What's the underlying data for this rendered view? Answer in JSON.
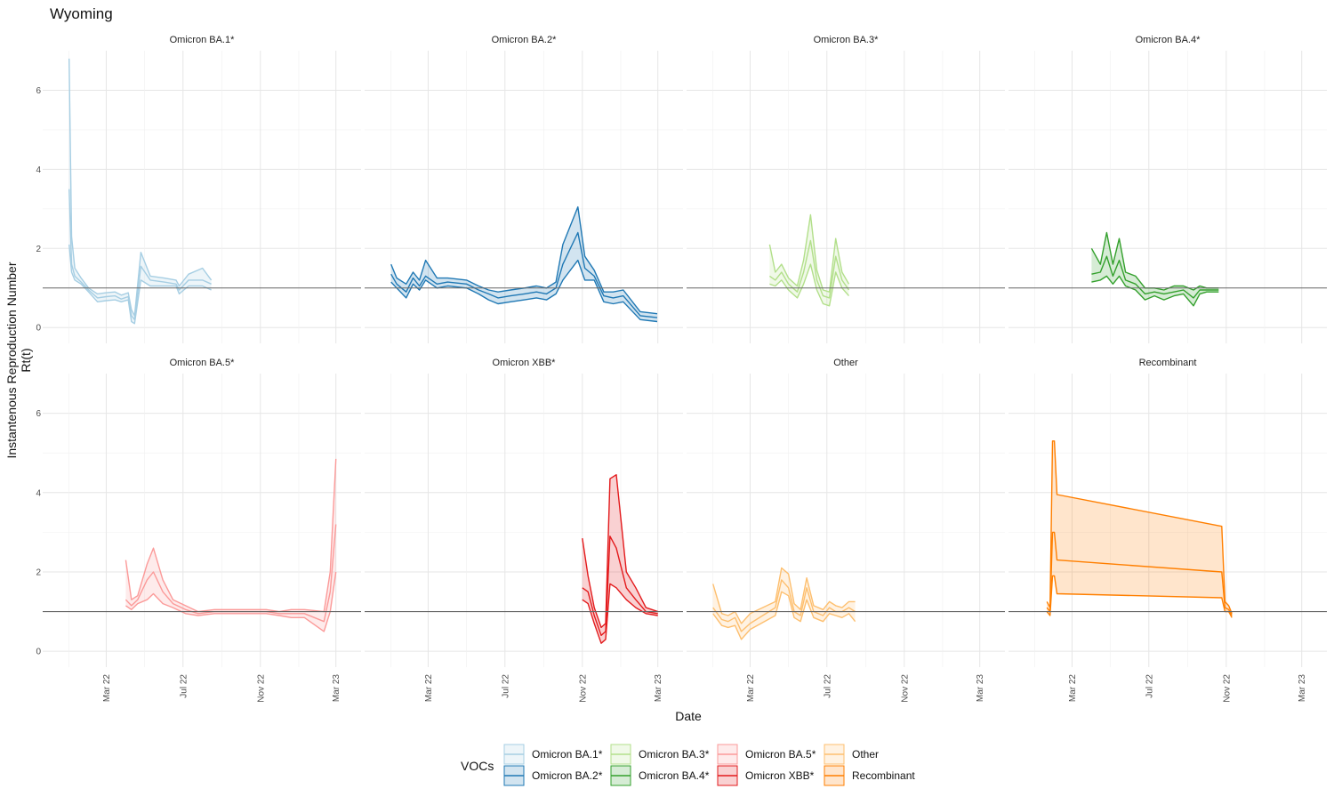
{
  "chart_data": {
    "type": "line",
    "title": "Wyoming",
    "xlabel": "Date",
    "ylabel_lines": [
      "Instantenous Reproduction Number",
      "Rt(t)"
    ],
    "ylim": [
      0,
      7
    ],
    "y_ticks": [
      0,
      2,
      4,
      6
    ],
    "reference_line": 1,
    "x_ticks": [
      "Mar 22",
      "Jul 22",
      "Nov 22",
      "Mar 23"
    ],
    "legend": {
      "title": "VOCs",
      "position": "bottom",
      "entries": [
        "Omicron BA.1*",
        "Omicron BA.2*",
        "Omicron BA.3*",
        "Omicron BA.4*",
        "Omicron BA.5*",
        "Omicron XBB*",
        "Other",
        "Recombinant"
      ]
    },
    "colors": {
      "Omicron BA.1*": "#a6cee3",
      "Omicron BA.2*": "#1f78b4",
      "Omicron BA.3*": "#b2df8a",
      "Omicron BA.4*": "#33a02c",
      "Omicron BA.5*": "#fb9a99",
      "Omicron XBB*": "#e31a1c",
      "Other": "#fdbf6f",
      "Recombinant": "#ff7f00"
    },
    "panels": [
      {
        "name": "Omicron BA.1*",
        "x": [
          "2022-01-01",
          "2022-01-05",
          "2022-01-10",
          "2022-01-20",
          "2022-02-01",
          "2022-02-15",
          "2022-03-01",
          "2022-03-15",
          "2022-03-25",
          "2022-04-05",
          "2022-04-10",
          "2022-04-15",
          "2022-04-25",
          "2022-05-10",
          "2022-06-01",
          "2022-06-20",
          "2022-06-25",
          "2022-07-10",
          "2022-08-01",
          "2022-08-15"
        ],
        "mean": [
          3.5,
          1.6,
          1.3,
          1.15,
          0.95,
          0.75,
          0.78,
          0.8,
          0.72,
          0.78,
          0.3,
          0.2,
          1.55,
          1.2,
          1.15,
          1.1,
          0.95,
          1.2,
          1.2,
          1.1
        ],
        "lower": [
          2.1,
          1.4,
          1.2,
          1.1,
          0.9,
          0.65,
          0.68,
          0.7,
          0.65,
          0.7,
          0.15,
          0.1,
          1.2,
          1.05,
          1.05,
          1.05,
          0.85,
          1.05,
          1.05,
          0.95
        ],
        "upper": [
          6.8,
          2.3,
          1.5,
          1.25,
          1.0,
          0.85,
          0.88,
          0.9,
          0.82,
          0.88,
          0.45,
          0.3,
          1.9,
          1.3,
          1.25,
          1.2,
          1.05,
          1.35,
          1.5,
          1.2
        ]
      },
      {
        "name": "Omicron BA.2*",
        "x": [
          "2022-01-01",
          "2022-01-10",
          "2022-01-25",
          "2022-02-05",
          "2022-02-15",
          "2022-02-25",
          "2022-03-15",
          "2022-04-01",
          "2022-05-01",
          "2022-05-20",
          "2022-06-05",
          "2022-06-20",
          "2022-07-10",
          "2022-08-01",
          "2022-08-20",
          "2022-09-05",
          "2022-09-20",
          "2022-10-01",
          "2022-10-25",
          "2022-11-05",
          "2022-11-20",
          "2022-12-05",
          "2022-12-20",
          "2023-01-05",
          "2023-02-01",
          "2023-02-28"
        ],
        "mean": [
          1.35,
          1.1,
          0.9,
          1.25,
          1.05,
          1.3,
          1.1,
          1.15,
          1.1,
          0.95,
          0.85,
          0.75,
          0.8,
          0.85,
          0.9,
          0.85,
          1.0,
          1.6,
          2.4,
          1.5,
          1.3,
          0.8,
          0.75,
          0.8,
          0.3,
          0.25
        ],
        "lower": [
          1.15,
          1.0,
          0.75,
          1.1,
          0.95,
          1.2,
          1.0,
          1.05,
          1.0,
          0.85,
          0.7,
          0.6,
          0.65,
          0.7,
          0.75,
          0.7,
          0.85,
          1.2,
          1.7,
          1.2,
          1.2,
          0.65,
          0.6,
          0.65,
          0.2,
          0.15
        ],
        "upper": [
          1.6,
          1.25,
          1.1,
          1.4,
          1.2,
          1.7,
          1.25,
          1.25,
          1.2,
          1.05,
          0.95,
          0.9,
          0.95,
          1.0,
          1.05,
          1.0,
          1.15,
          2.1,
          3.05,
          1.8,
          1.45,
          0.9,
          0.9,
          0.95,
          0.4,
          0.35
        ]
      },
      {
        "name": "Omicron BA.3*",
        "x": [
          "2022-04-01",
          "2022-04-10",
          "2022-04-20",
          "2022-05-01",
          "2022-05-15",
          "2022-05-25",
          "2022-06-05",
          "2022-06-15",
          "2022-06-25",
          "2022-07-05",
          "2022-07-15",
          "2022-07-25",
          "2022-08-05"
        ],
        "mean": [
          1.3,
          1.2,
          1.4,
          1.1,
          0.9,
          1.4,
          2.2,
          1.2,
          0.8,
          0.75,
          1.8,
          1.2,
          0.95
        ],
        "lower": [
          1.1,
          1.05,
          1.2,
          0.95,
          0.75,
          1.1,
          1.6,
          0.95,
          0.6,
          0.55,
          1.4,
          1.0,
          0.8
        ],
        "upper": [
          2.1,
          1.4,
          1.6,
          1.25,
          1.05,
          1.7,
          2.85,
          1.45,
          0.95,
          0.9,
          2.25,
          1.4,
          1.1
        ]
      },
      {
        "name": "Omicron BA.4*",
        "x": [
          "2022-04-01",
          "2022-04-15",
          "2022-04-25",
          "2022-05-05",
          "2022-05-15",
          "2022-05-25",
          "2022-06-10",
          "2022-06-25",
          "2022-07-10",
          "2022-07-25",
          "2022-08-10",
          "2022-08-25",
          "2022-09-10",
          "2022-09-20",
          "2022-10-01",
          "2022-10-20"
        ],
        "mean": [
          1.35,
          1.4,
          1.8,
          1.3,
          1.7,
          1.2,
          1.1,
          0.85,
          0.9,
          0.85,
          0.9,
          0.95,
          0.75,
          0.95,
          0.95,
          0.95
        ],
        "lower": [
          1.15,
          1.2,
          1.3,
          1.1,
          1.3,
          1.05,
          0.95,
          0.7,
          0.8,
          0.7,
          0.8,
          0.85,
          0.55,
          0.85,
          0.9,
          0.9
        ],
        "upper": [
          2.0,
          1.6,
          2.4,
          1.6,
          2.25,
          1.4,
          1.3,
          1.0,
          1.0,
          0.95,
          1.05,
          1.05,
          0.95,
          1.05,
          1.0,
          1.0
        ]
      },
      {
        "name": "Omicron BA.5*",
        "x": [
          "2022-04-01",
          "2022-04-10",
          "2022-04-20",
          "2022-05-05",
          "2022-05-15",
          "2022-05-30",
          "2022-06-15",
          "2022-07-05",
          "2022-07-25",
          "2022-08-20",
          "2022-09-20",
          "2022-10-20",
          "2022-11-10",
          "2022-12-01",
          "2022-12-20",
          "2023-01-10",
          "2023-02-10",
          "2023-02-20",
          "2023-03-01"
        ],
        "mean": [
          1.3,
          1.15,
          1.3,
          1.8,
          2.0,
          1.5,
          1.2,
          1.05,
          0.95,
          1.0,
          1.0,
          1.0,
          1.0,
          0.95,
          0.95,
          0.95,
          0.75,
          1.5,
          3.2
        ],
        "lower": [
          1.15,
          1.05,
          1.2,
          1.3,
          1.45,
          1.2,
          1.1,
          0.95,
          0.9,
          0.95,
          0.95,
          0.95,
          0.95,
          0.9,
          0.85,
          0.85,
          0.5,
          1.0,
          2.0
        ],
        "upper": [
          2.3,
          1.3,
          1.4,
          2.2,
          2.6,
          1.8,
          1.3,
          1.15,
          1.0,
          1.05,
          1.05,
          1.05,
          1.05,
          1.0,
          1.05,
          1.05,
          1.0,
          2.0,
          4.85
        ]
      },
      {
        "name": "Omicron XBB*",
        "x": [
          "2022-11-01",
          "2022-11-10",
          "2022-11-20",
          "2022-12-01",
          "2022-12-08",
          "2022-12-15",
          "2022-12-25",
          "2023-01-10",
          "2023-01-25",
          "2023-02-10",
          "2023-03-01"
        ],
        "mean": [
          1.6,
          1.5,
          0.9,
          0.4,
          0.5,
          2.9,
          2.6,
          1.6,
          1.3,
          1.0,
          0.95
        ],
        "lower": [
          1.3,
          1.2,
          0.7,
          0.2,
          0.3,
          1.7,
          1.6,
          1.3,
          1.1,
          0.95,
          0.9
        ],
        "upper": [
          2.85,
          1.9,
          1.1,
          0.6,
          0.7,
          4.35,
          4.45,
          2.0,
          1.6,
          1.1,
          1.0
        ]
      },
      {
        "name": "Other",
        "x": [
          "2022-01-01",
          "2022-01-15",
          "2022-01-25",
          "2022-02-05",
          "2022-02-15",
          "2022-03-01",
          "2022-04-10",
          "2022-04-20",
          "2022-05-01",
          "2022-05-10",
          "2022-05-20",
          "2022-05-30",
          "2022-06-10",
          "2022-06-25",
          "2022-07-05",
          "2022-07-15",
          "2022-07-25",
          "2022-08-05",
          "2022-08-15"
        ],
        "mean": [
          1.1,
          0.8,
          0.75,
          0.85,
          0.5,
          0.7,
          1.1,
          1.8,
          1.6,
          1.0,
          0.9,
          1.6,
          1.0,
          0.9,
          1.1,
          1.0,
          1.0,
          1.1,
          1.0
        ],
        "lower": [
          0.95,
          0.65,
          0.6,
          0.65,
          0.3,
          0.55,
          0.9,
          1.5,
          1.4,
          0.85,
          0.75,
          1.3,
          0.85,
          0.75,
          0.95,
          0.9,
          0.85,
          0.95,
          0.75
        ],
        "upper": [
          1.7,
          0.95,
          0.9,
          1.0,
          0.7,
          0.95,
          1.25,
          2.1,
          1.95,
          1.2,
          1.05,
          1.85,
          1.15,
          1.05,
          1.25,
          1.15,
          1.1,
          1.25,
          1.25
        ]
      },
      {
        "name": "Recombinant",
        "x": [
          "2022-01-20",
          "2022-01-25",
          "2022-01-29",
          "2022-02-01",
          "2022-02-05",
          "2022-10-25",
          "2022-10-30",
          "2022-11-05",
          "2022-11-10"
        ],
        "mean": [
          1.1,
          1.0,
          3.0,
          3.0,
          2.3,
          2.0,
          1.1,
          1.05,
          0.9
        ],
        "lower": [
          1.0,
          0.9,
          1.9,
          1.9,
          1.45,
          1.35,
          1.0,
          1.0,
          0.85
        ],
        "upper": [
          1.25,
          1.1,
          5.3,
          5.3,
          3.95,
          3.15,
          1.25,
          1.15,
          0.95
        ]
      }
    ]
  }
}
